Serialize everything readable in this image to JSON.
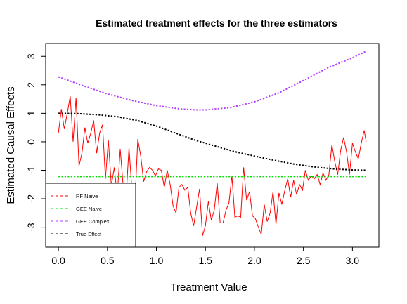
{
  "chart_data": {
    "type": "line",
    "title": "Estimated treatment effects for the three estimators",
    "xlabel": "Treatment Value",
    "ylabel": "Estimated Causal Effects",
    "xlim": [
      -0.13,
      3.27
    ],
    "ylim": [
      -3.7,
      3.45
    ],
    "x_ticks": [
      0.0,
      0.5,
      1.0,
      1.5,
      2.0,
      2.5,
      3.0
    ],
    "x_tick_labels": [
      "0.0",
      "0.5",
      "1.0",
      "1.5",
      "2.0",
      "2.5",
      "3.0"
    ],
    "y_ticks": [
      -3,
      -2,
      -1,
      0,
      1,
      2,
      3
    ],
    "y_tick_labels": [
      "-3",
      "-2",
      "-1",
      "0",
      "1",
      "2",
      "3"
    ],
    "legend": {
      "position": "bottom-left",
      "entries": [
        "RF Naive",
        "GEE Naive",
        "GEE Complex",
        "True Effect"
      ]
    },
    "series": [
      {
        "name": "RF Naive",
        "color": "#ff0000",
        "style": "solid",
        "x": [
          0.0,
          0.03,
          0.06,
          0.09,
          0.12,
          0.15,
          0.18,
          0.21,
          0.24,
          0.27,
          0.3,
          0.33,
          0.36,
          0.39,
          0.42,
          0.45,
          0.48,
          0.51,
          0.54,
          0.57,
          0.6,
          0.63,
          0.66,
          0.69,
          0.72,
          0.75,
          0.78,
          0.81,
          0.84,
          0.87,
          0.9,
          0.93,
          0.96,
          0.99,
          1.02,
          1.05,
          1.08,
          1.11,
          1.14,
          1.17,
          1.2,
          1.23,
          1.26,
          1.29,
          1.32,
          1.35,
          1.38,
          1.41,
          1.44,
          1.47,
          1.5,
          1.53,
          1.56,
          1.59,
          1.62,
          1.65,
          1.68,
          1.71,
          1.74,
          1.77,
          1.8,
          1.83,
          1.86,
          1.89,
          1.92,
          1.95,
          1.98,
          2.01,
          2.04,
          2.07,
          2.1,
          2.13,
          2.16,
          2.19,
          2.22,
          2.25,
          2.28,
          2.31,
          2.34,
          2.37,
          2.4,
          2.43,
          2.46,
          2.49,
          2.52,
          2.55,
          2.58,
          2.61,
          2.64,
          2.67,
          2.7,
          2.73,
          2.76,
          2.79,
          2.82,
          2.85,
          2.88,
          2.91,
          2.94,
          2.97,
          3.0,
          3.03,
          3.06,
          3.09,
          3.12,
          3.14
        ],
        "y": [
          0.3,
          1.15,
          0.45,
          1.0,
          1.6,
          0.0,
          1.55,
          -0.85,
          -0.4,
          0.5,
          -0.05,
          0.3,
          0.75,
          -0.4,
          0.3,
          0.6,
          -1.3,
          0.05,
          -1.55,
          -0.9,
          -1.9,
          -0.25,
          -1.5,
          -2.0,
          -0.2,
          -1.7,
          -2.2,
          0.1,
          -0.5,
          -1.4,
          -1.05,
          -0.9,
          -1.0,
          -1.2,
          -0.95,
          -1.0,
          -1.6,
          -1.0,
          -1.5,
          -2.25,
          -2.5,
          -1.6,
          -1.5,
          -1.7,
          -1.6,
          -2.5,
          -2.95,
          -2.3,
          -1.65,
          -3.3,
          -2.95,
          -2.1,
          -2.75,
          -2.4,
          -1.45,
          -2.85,
          -2.85,
          -2.4,
          -2.15,
          -1.2,
          -2.65,
          -2.6,
          -2.65,
          -0.9,
          -2.05,
          -1.75,
          -2.6,
          -2.7,
          -3.0,
          -3.25,
          -2.2,
          -2.8,
          -2.5,
          -1.75,
          -2.9,
          -1.8,
          -2.2,
          -1.7,
          -1.3,
          -1.95,
          -1.35,
          -1.85,
          -1.5,
          -1.7,
          -1.0,
          -1.35,
          -1.2,
          -1.3,
          -1.15,
          -1.5,
          -1.1,
          -1.35,
          -1.15,
          -0.1,
          -0.7,
          -1.15,
          -0.3,
          0.15,
          -0.35,
          -1.15,
          -0.05,
          -0.35,
          -0.6,
          -0.05,
          0.4,
          0.0
        ]
      },
      {
        "name": "GEE Naive",
        "color": "#00e000",
        "style": "dotted",
        "x": [
          0.0,
          3.14
        ],
        "y": [
          -1.22,
          -1.22
        ]
      },
      {
        "name": "GEE Complex",
        "color": "#b040ff",
        "style": "dotted",
        "x": [
          0.0,
          0.25,
          0.5,
          0.75,
          1.0,
          1.25,
          1.4,
          1.5,
          1.75,
          2.0,
          2.25,
          2.5,
          2.75,
          3.0,
          3.14
        ],
        "y": [
          2.28,
          1.97,
          1.68,
          1.45,
          1.27,
          1.15,
          1.12,
          1.12,
          1.2,
          1.4,
          1.72,
          2.15,
          2.6,
          2.95,
          3.18
        ]
      },
      {
        "name": "True Effect",
        "color": "#000000",
        "style": "dotted",
        "x": [
          0.0,
          0.2,
          0.4,
          0.6,
          0.8,
          1.0,
          1.2,
          1.4,
          1.6,
          1.8,
          2.0,
          2.2,
          2.4,
          2.6,
          2.8,
          3.0,
          3.14
        ],
        "y": [
          1.0,
          0.99,
          0.95,
          0.88,
          0.75,
          0.55,
          0.3,
          0.05,
          -0.15,
          -0.35,
          -0.5,
          -0.65,
          -0.78,
          -0.88,
          -0.95,
          -0.99,
          -1.0
        ]
      }
    ]
  }
}
